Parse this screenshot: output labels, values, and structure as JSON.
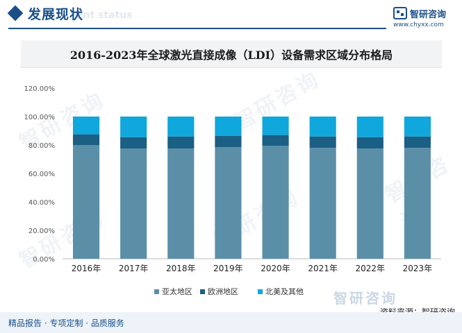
{
  "header": {
    "section_title": "发展现状",
    "section_ghost": "ent status",
    "logo_text": "智研咨询",
    "logo_url": "www.chyxx.com"
  },
  "chart_data": {
    "type": "bar",
    "stacked": true,
    "title": "2016-2023年全球激光直接成像（LDI）设备需求区域分布格局",
    "categories": [
      "2016年",
      "2017年",
      "2018年",
      "2019年",
      "2020年",
      "2021年",
      "2022年",
      "2023年"
    ],
    "series": [
      {
        "name": "亚太地区",
        "color": "#5b8fa8",
        "values": [
          80.0,
          77.5,
          77.5,
          78.5,
          79.5,
          78.0,
          77.5,
          78.0
        ]
      },
      {
        "name": "欧洲地区",
        "color": "#1b5f85",
        "values": [
          7.5,
          8.0,
          8.5,
          8.0,
          7.5,
          8.0,
          8.0,
          8.0
        ]
      },
      {
        "name": "北美及其他",
        "color": "#0fa7dc",
        "values": [
          12.5,
          14.5,
          14.0,
          13.5,
          13.0,
          14.0,
          14.5,
          14.0
        ]
      }
    ],
    "yticks": [
      "0.00%",
      "20.00%",
      "40.00%",
      "60.00%",
      "80.00%",
      "100.00%",
      "120.00%"
    ],
    "ylim": [
      0,
      120
    ],
    "grid": false,
    "legend_position": "bottom"
  },
  "footer": {
    "left_text": "精品报告 · 专项定制 · 品质服务",
    "source_text": "资料来源：智研咨询",
    "watermark_text": "智研咨询"
  }
}
